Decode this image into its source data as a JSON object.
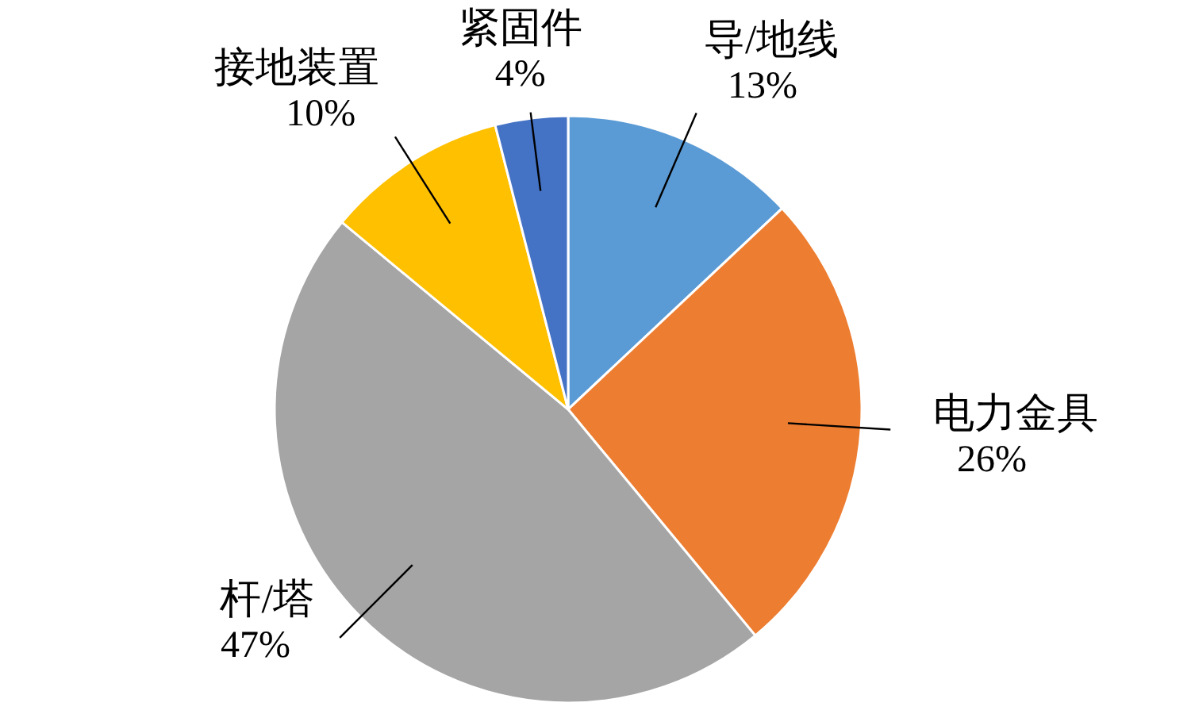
{
  "chart_data": {
    "type": "pie",
    "categories": [
      "导/地线",
      "电力金具",
      "杆/塔",
      "接地装置",
      "紧固件"
    ],
    "values": [
      13,
      26,
      47,
      10,
      4
    ],
    "value_labels": [
      "13%",
      "26%",
      "47%",
      "10%",
      "4%"
    ],
    "colors": [
      "#5b9bd5",
      "#ed7d31",
      "#a5a5a5",
      "#ffc000",
      "#4472c4"
    ],
    "legend": false
  }
}
